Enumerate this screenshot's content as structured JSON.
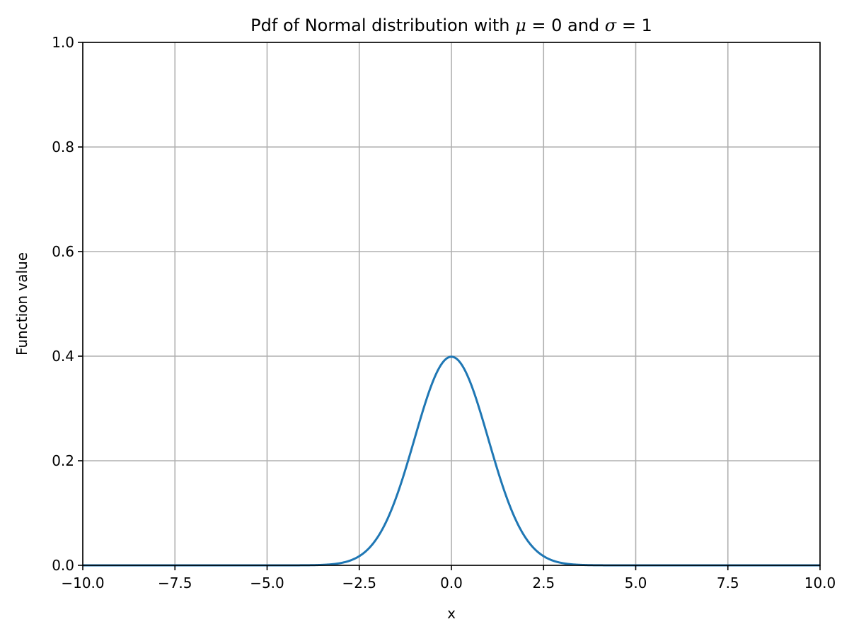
{
  "chart_data": {
    "type": "line",
    "title": {
      "prefix": "Pdf of Normal distribution with ",
      "mu_symbol": "μ",
      "mu_eq": " = 0",
      "middle": " and ",
      "sigma_symbol": "σ",
      "sigma_eq": " = 1"
    },
    "xlabel": "x",
    "ylabel": "Function value",
    "xlim": [
      -10,
      10
    ],
    "ylim": [
      0,
      1
    ],
    "xticks": [
      -10,
      -7.5,
      -5,
      -2.5,
      0,
      2.5,
      5,
      7.5,
      10
    ],
    "xtick_labels": [
      "−10.0",
      "−7.5",
      "−5.0",
      "−2.5",
      "0.0",
      "2.5",
      "5.0",
      "7.5",
      "10.0"
    ],
    "yticks": [
      0,
      0.2,
      0.4,
      0.6,
      0.8,
      1.0
    ],
    "ytick_labels": [
      "0.0",
      "0.2",
      "0.4",
      "0.6",
      "0.8",
      "1.0"
    ],
    "grid": true,
    "series": [
      {
        "distribution": "normal",
        "mu": 0,
        "sigma": 1,
        "color": "#1f77b4",
        "x_range": [
          -10,
          10
        ],
        "peak": {
          "x": 0,
          "y": 0.399
        }
      }
    ],
    "grid_color": "#b0b0b0",
    "axis_color": "#000000"
  }
}
